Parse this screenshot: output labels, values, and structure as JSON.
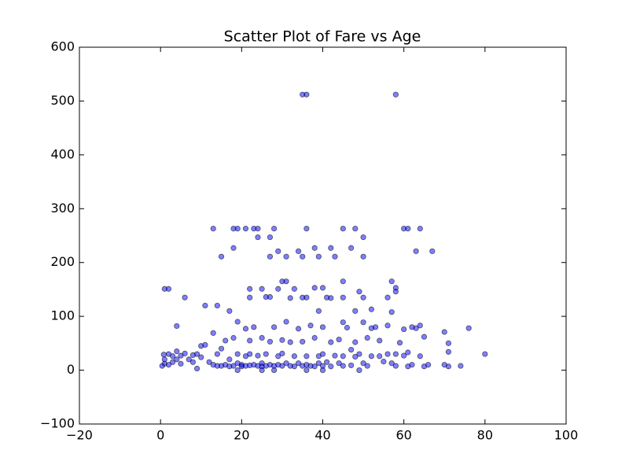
{
  "chart_data": {
    "type": "scatter",
    "title": "Scatter Plot of Fare vs Age",
    "xlim": [
      -20,
      100
    ],
    "xticks": [
      {
        "value": -20,
        "label": "−20"
      },
      0,
      20,
      40,
      60,
      80,
      100
    ],
    "ylim": [
      -100,
      600
    ],
    "yticks": [
      {
        "value": -100,
        "label": "−100"
      },
      0,
      100,
      200,
      300,
      400,
      500,
      600
    ],
    "grid": false,
    "series": [
      {
        "color": "#0000ff",
        "x": [
          35,
          36,
          58,
          13,
          18,
          19,
          21,
          23,
          24,
          28,
          36,
          45,
          48,
          60,
          61,
          64,
          15,
          18,
          24,
          27,
          27,
          29,
          31,
          34,
          35,
          38,
          39,
          42,
          43,
          47,
          50,
          50,
          63,
          67,
          1,
          2,
          6,
          11,
          14,
          17,
          22,
          22,
          25,
          26,
          27,
          29,
          30,
          31,
          32,
          33,
          35,
          36,
          38,
          39,
          40,
          41,
          42,
          45,
          45,
          49,
          50,
          52,
          56,
          57,
          58,
          58,
          57,
          48,
          1,
          1,
          2,
          2,
          3,
          3,
          4,
          4,
          4,
          5,
          5,
          6,
          7,
          8,
          8,
          9,
          9,
          10,
          10,
          11,
          12,
          13,
          13,
          14,
          14,
          15,
          15,
          16,
          16,
          17,
          17,
          18,
          18,
          19,
          19,
          19,
          20,
          20,
          21,
          21,
          21,
          22,
          22,
          22,
          23,
          23,
          24,
          24,
          25,
          25,
          25,
          26,
          26,
          27,
          27,
          28,
          28,
          29,
          29,
          30,
          30,
          30,
          31,
          31,
          32,
          32,
          33,
          33,
          34,
          34,
          35,
          35,
          36,
          36,
          37,
          37,
          38,
          38,
          39,
          39,
          40,
          40,
          40,
          41,
          42,
          42,
          43,
          44,
          44,
          45,
          45,
          45,
          46,
          47,
          47,
          48,
          48,
          49,
          49,
          50,
          50,
          51,
          51,
          52,
          52,
          53,
          54,
          54,
          55,
          56,
          56,
          57,
          58,
          58,
          59,
          60,
          60,
          61,
          61,
          62,
          62,
          63,
          64,
          64,
          65,
          65,
          66,
          70,
          70,
          71,
          71,
          71,
          74,
          76,
          80,
          0.4,
          0.8,
          28,
          40,
          36,
          25,
          19
        ],
        "values": [
          512,
          512,
          512,
          263,
          263,
          263,
          263,
          263,
          263,
          263,
          263,
          263,
          263,
          263,
          263,
          263,
          211,
          227,
          247,
          247,
          211,
          221,
          211,
          221,
          211,
          227,
          211,
          227,
          211,
          227,
          247,
          211,
          221,
          221,
          151,
          151,
          135,
          120,
          120,
          110,
          151,
          135,
          151,
          136,
          136,
          151,
          165,
          165,
          134,
          151,
          135,
          135,
          153,
          110,
          153,
          135,
          134,
          165,
          135,
          146,
          135,
          113,
          135,
          165,
          153,
          146,
          108,
          110,
          20,
          12,
          30,
          10,
          26,
          15,
          35,
          20,
          82,
          27,
          12,
          31,
          20,
          28,
          15,
          30,
          3,
          45,
          24,
          47,
          15,
          69,
          10,
          30,
          8,
          40,
          8,
          55,
          10,
          20,
          7,
          60,
          8,
          30,
          13,
          90,
          10,
          7,
          77,
          26,
          8,
          55,
          9,
          30,
          80,
          10,
          27,
          8,
          60,
          13,
          7,
          30,
          8,
          53,
          10,
          80,
          8,
          26,
          10,
          56,
          8,
          31,
          90,
          13,
          52,
          8,
          26,
          7,
          77,
          13,
          53,
          8,
          26,
          10,
          83,
          8,
          60,
          7,
          26,
          13,
          80,
          8,
          30,
          15,
          52,
          7,
          27,
          57,
          13,
          89,
          26,
          8,
          79,
          38,
          9,
          52,
          25,
          30,
          0,
          89,
          13,
          60,
          8,
          78,
          26,
          80,
          55,
          26,
          16,
          83,
          30,
          13,
          30,
          8,
          51,
          76,
          27,
          33,
          7,
          80,
          10,
          78,
          26,
          83,
          62,
          7,
          10,
          71,
          10,
          50,
          34,
          7,
          8,
          78,
          30,
          8,
          29,
          0,
          0,
          0,
          0,
          0
        ]
      }
    ]
  }
}
